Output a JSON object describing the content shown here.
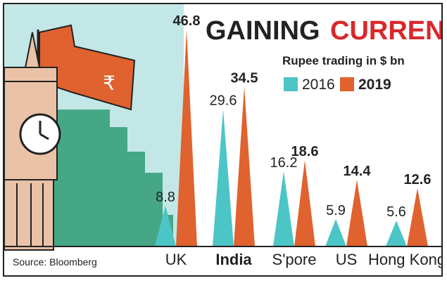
{
  "title": {
    "part1": "GAINING",
    "part2": "CURRENCY"
  },
  "subtitle": "Rupee trading in $ bn",
  "source": "Source: Bloomberg",
  "legend": [
    {
      "label": "2016",
      "color": "#4cc5c6"
    },
    {
      "label": "2019",
      "color": "#e0622f"
    }
  ],
  "illustration": {
    "flag_symbol": "₹",
    "icon": "big-ben-clock-tower-icon"
  },
  "colors": {
    "title_dark": "#222222",
    "title_accent": "#d9282c",
    "flag": "#e0622f",
    "skyline": "#39a07b",
    "background": "#c3e7e6"
  },
  "chart_data": {
    "type": "bar",
    "title": "GAINING CURRENCY",
    "subtitle": "Rupee trading in $ bn",
    "categories": [
      "UK",
      "India",
      "S'pore",
      "US",
      "Hong Kong"
    ],
    "series": [
      {
        "name": "2016",
        "values": [
          8.8,
          29.6,
          16.2,
          5.9,
          5.6
        ],
        "labels": [
          "8.8",
          "29.6",
          "16.2",
          "5.9",
          "5.6"
        ]
      },
      {
        "name": "2019",
        "values": [
          46.8,
          34.5,
          18.6,
          14.4,
          12.6
        ],
        "labels": [
          "46.8",
          "34.5",
          "18.6",
          "14.4",
          "12.6"
        ]
      }
    ],
    "bar_shape": "triangle",
    "ylim": [
      0,
      50
    ],
    "grid": false,
    "legend_position": "top-right",
    "bold_categories": [
      "India"
    ]
  }
}
